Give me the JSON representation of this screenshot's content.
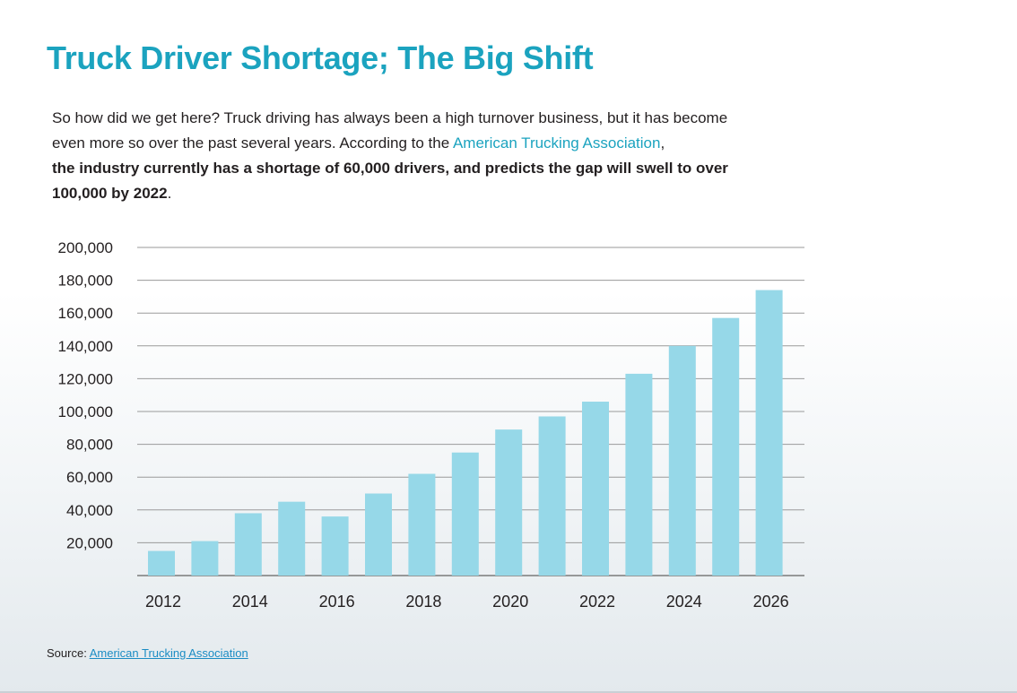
{
  "title": "Truck Driver Shortage; The Big Shift",
  "intro": {
    "text1": "So how did we get here? Truck driving has always been a high turnover business, but it has become even more so over the past several years. According to the ",
    "link": "American Trucking Association",
    "text2": ", ",
    "bold": "the industry currently has a shortage of 60,000 drivers, and predicts the gap will swell to over 100,000 by 2022",
    "text3": "."
  },
  "source": {
    "label": "Source:",
    "link": "American Trucking Association"
  },
  "colors": {
    "accent": "#1ba3bf",
    "bar": "#96d8e8",
    "grid": "#9a9a9a",
    "link": "#1b8cc4"
  },
  "chart_data": {
    "type": "bar",
    "title": "",
    "xlabel": "",
    "ylabel": "",
    "categories": [
      "2012",
      "2013",
      "2014",
      "2015",
      "2016",
      "2017",
      "2018",
      "2019",
      "2020",
      "2021",
      "2022",
      "2023",
      "2024",
      "2025",
      "2026"
    ],
    "values": [
      15000,
      21000,
      38000,
      45000,
      36000,
      50000,
      62000,
      75000,
      89000,
      97000,
      106000,
      123000,
      140000,
      157000,
      174000
    ],
    "ylim": [
      0,
      200000
    ],
    "yticks": [
      20000,
      40000,
      60000,
      80000,
      100000,
      120000,
      140000,
      160000,
      180000,
      200000
    ],
    "ytick_labels": [
      "20,000",
      "40,000",
      "60,000",
      "80,000",
      "100,000",
      "120,000",
      "140,000",
      "160,000",
      "180,000",
      "200,000"
    ],
    "xtick_labels": [
      "2012",
      "2014",
      "2016",
      "2018",
      "2020",
      "2022",
      "2024",
      "2026"
    ],
    "grid": true
  }
}
